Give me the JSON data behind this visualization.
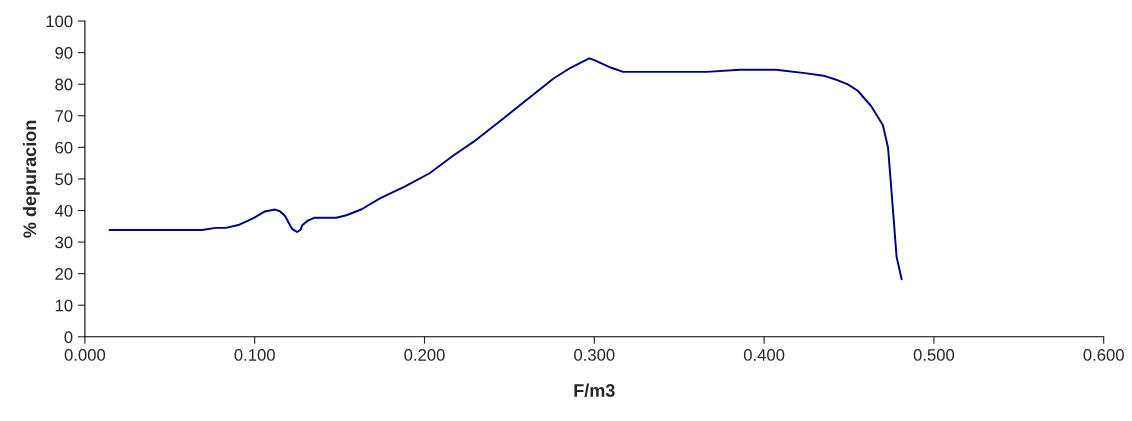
{
  "chart_data": {
    "type": "line",
    "xlabel": "F/m3",
    "ylabel": "% depuracion",
    "xlim": [
      0,
      0.6
    ],
    "ylim": [
      0,
      100
    ],
    "xticks": [
      {
        "value": 0,
        "label": "0.000"
      },
      {
        "value": 0.1,
        "label": "0.100"
      },
      {
        "value": 0.2,
        "label": "0.200"
      },
      {
        "value": 0.3,
        "label": "0.300"
      },
      {
        "value": 0.4,
        "label": "0.400"
      },
      {
        "value": 0.5,
        "label": "0.500"
      },
      {
        "value": 0.6,
        "label": "0.600"
      }
    ],
    "yticks": [
      0,
      10,
      20,
      30,
      40,
      50,
      60,
      70,
      80,
      90,
      100
    ],
    "grid": false,
    "marker": "none",
    "line_style": "solid",
    "series": [
      {
        "color": "#000080",
        "x": [
          0.0146,
          0.069,
          0.077,
          0.083,
          0.091,
          0.099,
          0.106,
          0.112,
          0.115,
          0.118,
          0.12,
          0.122,
          0.125,
          0.127,
          0.128,
          0.131,
          0.135,
          0.148,
          0.154,
          0.163,
          0.174,
          0.188,
          0.203,
          0.217,
          0.229,
          0.247,
          0.276,
          0.286,
          0.297,
          0.3,
          0.31,
          0.317,
          0.366,
          0.386,
          0.407,
          0.424,
          0.435,
          0.442,
          0.449,
          0.455,
          0.463,
          0.47,
          0.473,
          0.476,
          0.478,
          0.481
        ],
        "values": [
          33.8,
          33.8,
          34.5,
          34.5,
          35.5,
          37.5,
          39.7,
          40.3,
          39.7,
          38.2,
          36.1,
          34.2,
          33.2,
          33.9,
          35.3,
          36.7,
          37.7,
          37.7,
          38.5,
          40.4,
          43.9,
          47.5,
          51.8,
          57.4,
          61.8,
          69.4,
          81.8,
          85.2,
          88.2,
          87.6,
          85.2,
          83.9,
          83.9,
          84.6,
          84.6,
          83.5,
          82.7,
          81.5,
          80.0,
          78.0,
          73.1,
          67.0,
          59.9,
          39.4,
          25.4,
          18.2
        ]
      }
    ]
  }
}
